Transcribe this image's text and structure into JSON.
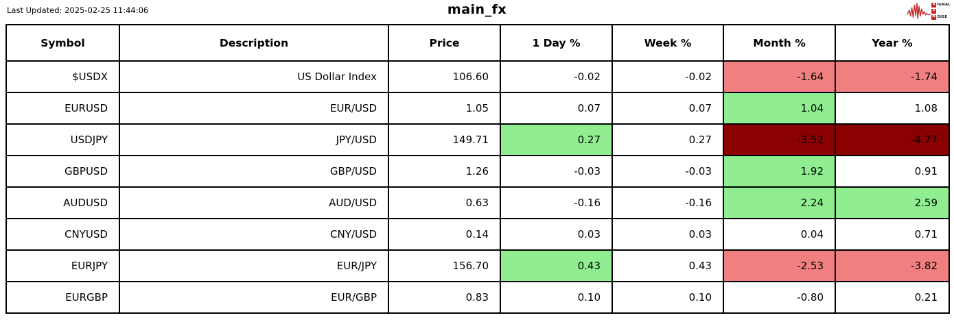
{
  "header": {
    "last_updated": "Last Updated: 2025-02-25 11:44:06",
    "title": "main_fx"
  },
  "logo": {
    "line1_initial": "S",
    "line1_rest": "IGNAL",
    "line2_initial": "2",
    "line2_rest": "",
    "line3_initial": "N",
    "line3_rest": "OISE",
    "accent_color": "#c62828"
  },
  "colors": {
    "positive": "#90ee90",
    "negative": "#f08080",
    "strong_negative": "#8b0000",
    "border": "#000000"
  },
  "chart_data": {
    "type": "table",
    "title": "main_fx",
    "columns": [
      "Symbol",
      "Description",
      "Price",
      "1 Day %",
      "Week %",
      "Month %",
      "Year %"
    ],
    "rows": [
      {
        "cells": [
          "$USDX",
          "US Dollar Index",
          "106.60",
          "-0.02",
          "-0.02",
          "-1.64",
          "-1.74"
        ],
        "cell_bg": [
          null,
          null,
          null,
          null,
          null,
          "negative",
          "negative"
        ]
      },
      {
        "cells": [
          "EURUSD",
          "EUR/USD",
          "1.05",
          "0.07",
          "0.07",
          "1.04",
          "1.08"
        ],
        "cell_bg": [
          null,
          null,
          null,
          null,
          null,
          "positive",
          null
        ]
      },
      {
        "cells": [
          "USDJPY",
          "JPY/USD",
          "149.71",
          "0.27",
          "0.27",
          "-3.52",
          "-4.77"
        ],
        "cell_bg": [
          null,
          null,
          null,
          "positive",
          null,
          "strong_negative",
          "strong_negative"
        ]
      },
      {
        "cells": [
          "GBPUSD",
          "GBP/USD",
          "1.26",
          "-0.03",
          "-0.03",
          "1.92",
          "0.91"
        ],
        "cell_bg": [
          null,
          null,
          null,
          null,
          null,
          "positive",
          null
        ]
      },
      {
        "cells": [
          "AUDUSD",
          "AUD/USD",
          "0.63",
          "-0.16",
          "-0.16",
          "2.24",
          "2.59"
        ],
        "cell_bg": [
          null,
          null,
          null,
          null,
          null,
          "positive",
          "positive"
        ]
      },
      {
        "cells": [
          "CNYUSD",
          "CNY/USD",
          "0.14",
          "0.03",
          "0.03",
          "0.04",
          "0.71"
        ],
        "cell_bg": [
          null,
          null,
          null,
          null,
          null,
          null,
          null
        ]
      },
      {
        "cells": [
          "EURJPY",
          "EUR/JPY",
          "156.70",
          "0.43",
          "0.43",
          "-2.53",
          "-3.82"
        ],
        "cell_bg": [
          null,
          null,
          null,
          "positive",
          null,
          "negative",
          "negative"
        ]
      },
      {
        "cells": [
          "EURGBP",
          "EUR/GBP",
          "0.83",
          "0.10",
          "0.10",
          "-0.80",
          "0.21"
        ],
        "cell_bg": [
          null,
          null,
          null,
          null,
          null,
          null,
          null
        ]
      }
    ]
  }
}
